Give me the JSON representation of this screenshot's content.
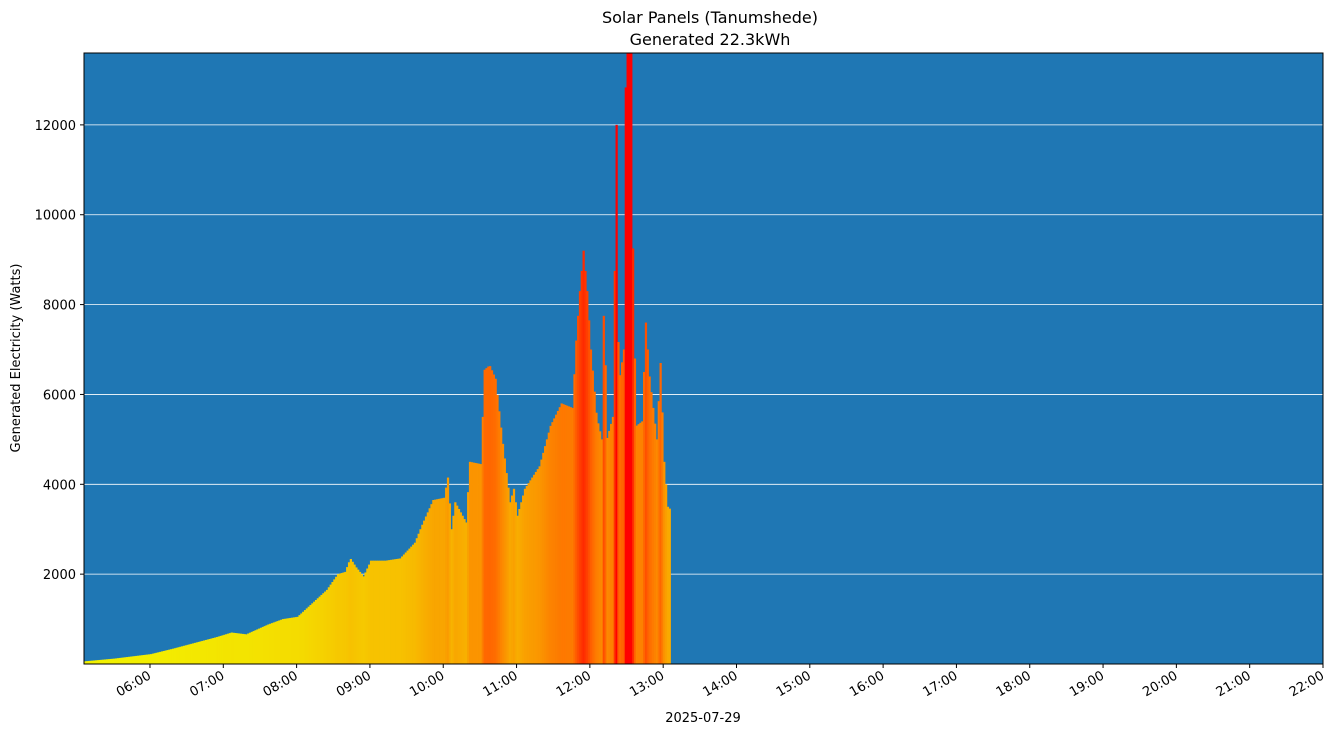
{
  "chart_data": {
    "type": "bar",
    "title": "Solar Panels (Tanumshede)",
    "subtitle": "Generated 22.3kWh",
    "xlabel": "2025-07-29",
    "ylabel": "Generated Electricity (Watts)",
    "background_color": "#1f77b4",
    "grid": {
      "y": true,
      "color": "#ffffff"
    },
    "color_scale": {
      "low": "#f2f200",
      "mid": "#ff6a00",
      "high": "#ff0000"
    },
    "x_ticks": [
      "06:00",
      "07:00",
      "08:00",
      "09:00",
      "10:00",
      "11:00",
      "12:00",
      "13:00",
      "14:00",
      "15:00",
      "16:00",
      "17:00",
      "18:00",
      "19:00",
      "20:00",
      "21:00",
      "22:00"
    ],
    "y_ticks": [
      2000,
      4000,
      6000,
      8000,
      10000,
      12000
    ],
    "xlim_hours": [
      5.1,
      22.0
    ],
    "ylim": [
      0,
      13600
    ],
    "series_keypoints": [
      [
        5.1,
        60
      ],
      [
        5.5,
        120
      ],
      [
        5.8,
        180
      ],
      [
        6.0,
        220
      ],
      [
        6.3,
        340
      ],
      [
        6.6,
        470
      ],
      [
        6.9,
        600
      ],
      [
        7.1,
        700
      ],
      [
        7.3,
        660
      ],
      [
        7.6,
        880
      ],
      [
        7.8,
        1000
      ],
      [
        8.0,
        1050
      ],
      [
        8.2,
        1350
      ],
      [
        8.4,
        1650
      ],
      [
        8.55,
        2000
      ],
      [
        8.65,
        2050
      ],
      [
        8.72,
        2350
      ],
      [
        8.8,
        2150
      ],
      [
        8.9,
        1950
      ],
      [
        9.0,
        2300
      ],
      [
        9.2,
        2300
      ],
      [
        9.4,
        2350
      ],
      [
        9.6,
        2700
      ],
      [
        9.7,
        3100
      ],
      [
        9.85,
        3650
      ],
      [
        10.0,
        3700
      ],
      [
        10.05,
        4150
      ],
      [
        10.1,
        3000
      ],
      [
        10.15,
        3600
      ],
      [
        10.3,
        3150
      ],
      [
        10.35,
        4500
      ],
      [
        10.5,
        4450
      ],
      [
        10.55,
        6550
      ],
      [
        10.62,
        6650
      ],
      [
        10.7,
        6350
      ],
      [
        10.8,
        4900
      ],
      [
        10.9,
        3600
      ],
      [
        10.95,
        3900
      ],
      [
        11.0,
        3300
      ],
      [
        11.1,
        3900
      ],
      [
        11.3,
        4400
      ],
      [
        11.45,
        5300
      ],
      [
        11.6,
        5800
      ],
      [
        11.75,
        5700
      ],
      [
        11.8,
        7200
      ],
      [
        11.85,
        8300
      ],
      [
        11.9,
        9200
      ],
      [
        11.95,
        8300
      ],
      [
        12.0,
        7000
      ],
      [
        12.08,
        5500
      ],
      [
        12.15,
        5000
      ],
      [
        12.18,
        8300
      ],
      [
        12.22,
        5000
      ],
      [
        12.3,
        5500
      ],
      [
        12.35,
        12000
      ],
      [
        12.38,
        6200
      ],
      [
        12.45,
        7000
      ],
      [
        12.48,
        14000
      ],
      [
        12.55,
        14000
      ],
      [
        12.58,
        8300
      ],
      [
        12.62,
        5300
      ],
      [
        12.7,
        5400
      ],
      [
        12.75,
        7600
      ],
      [
        12.8,
        6400
      ],
      [
        12.9,
        5000
      ],
      [
        12.95,
        6700
      ],
      [
        13.0,
        4500
      ],
      [
        13.05,
        3500
      ],
      [
        13.08,
        3450
      ]
    ]
  }
}
